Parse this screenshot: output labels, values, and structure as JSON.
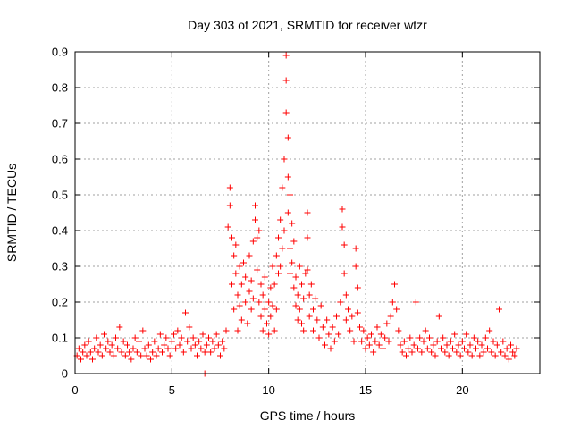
{
  "chart_data": {
    "type": "scatter",
    "title": "Day 303 of 2021, SRMTID for receiver wtzr",
    "xlabel": "GPS time / hours",
    "ylabel": "SRMTID / TECUs",
    "xlim": [
      0,
      24
    ],
    "ylim": [
      0,
      0.9
    ],
    "xticks": [
      0,
      5,
      10,
      15,
      20
    ],
    "xtick_labels": [
      "0",
      "5",
      "10",
      "15",
      "20"
    ],
    "yticks": [
      0,
      0.1,
      0.2,
      0.3,
      0.4,
      0.5,
      0.6,
      0.7,
      0.8,
      0.9
    ],
    "ytick_labels": [
      "0",
      "0.1",
      "0.2",
      "0.3",
      "0.4",
      "0.5",
      "0.6",
      "0.7",
      "0.8",
      "0.9"
    ],
    "grid": true,
    "marker": "+",
    "color": "#ff0000",
    "series": [
      {
        "name": "SRMTID",
        "points": [
          [
            0.1,
            0.05
          ],
          [
            0.2,
            0.07
          ],
          [
            0.3,
            0.04
          ],
          [
            0.4,
            0.06
          ],
          [
            0.5,
            0.08
          ],
          [
            0.6,
            0.05
          ],
          [
            0.7,
            0.09
          ],
          [
            0.8,
            0.06
          ],
          [
            0.9,
            0.04
          ],
          [
            1.0,
            0.07
          ],
          [
            1.1,
            0.1
          ],
          [
            1.2,
            0.06
          ],
          [
            1.3,
            0.08
          ],
          [
            1.4,
            0.05
          ],
          [
            1.5,
            0.11
          ],
          [
            1.6,
            0.07
          ],
          [
            1.7,
            0.09
          ],
          [
            1.8,
            0.06
          ],
          [
            1.9,
            0.08
          ],
          [
            2.0,
            0.05
          ],
          [
            2.1,
            0.1
          ],
          [
            2.2,
            0.07
          ],
          [
            2.3,
            0.13
          ],
          [
            2.4,
            0.06
          ],
          [
            2.5,
            0.09
          ],
          [
            2.6,
            0.05
          ],
          [
            2.7,
            0.08
          ],
          [
            2.8,
            0.06
          ],
          [
            2.9,
            0.04
          ],
          [
            3.0,
            0.07
          ],
          [
            3.1,
            0.1
          ],
          [
            3.2,
            0.06
          ],
          [
            3.3,
            0.09
          ],
          [
            3.4,
            0.05
          ],
          [
            3.5,
            0.12
          ],
          [
            3.6,
            0.07
          ],
          [
            3.7,
            0.05
          ],
          [
            3.8,
            0.08
          ],
          [
            3.9,
            0.04
          ],
          [
            4.0,
            0.06
          ],
          [
            4.1,
            0.09
          ],
          [
            4.2,
            0.05
          ],
          [
            4.3,
            0.07
          ],
          [
            4.4,
            0.11
          ],
          [
            4.5,
            0.06
          ],
          [
            4.6,
            0.08
          ],
          [
            4.7,
            0.1
          ],
          [
            4.8,
            0.07
          ],
          [
            4.9,
            0.05
          ],
          [
            5.0,
            0.09
          ],
          [
            5.1,
            0.11
          ],
          [
            5.2,
            0.07
          ],
          [
            5.3,
            0.12
          ],
          [
            5.4,
            0.08
          ],
          [
            5.5,
            0.1
          ],
          [
            5.6,
            0.06
          ],
          [
            5.7,
            0.17
          ],
          [
            5.8,
            0.09
          ],
          [
            5.9,
            0.13
          ],
          [
            6.0,
            0.07
          ],
          [
            6.1,
            0.1
          ],
          [
            6.2,
            0.08
          ],
          [
            6.3,
            0.05
          ],
          [
            6.4,
            0.09
          ],
          [
            6.5,
            0.07
          ],
          [
            6.6,
            0.11
          ],
          [
            6.7,
            0.06
          ],
          [
            6.8,
            0.08
          ],
          [
            6.9,
            0.1
          ],
          [
            7.0,
            0.06
          ],
          [
            7.1,
            0.09
          ],
          [
            7.2,
            0.07
          ],
          [
            7.3,
            0.11
          ],
          [
            7.4,
            0.08
          ],
          [
            7.5,
            0.05
          ],
          [
            7.6,
            0.09
          ],
          [
            7.7,
            0.07
          ],
          [
            7.8,
            0.12
          ],
          [
            7.9,
            0.41
          ],
          [
            8.0,
            0.47
          ],
          [
            8.0,
            0.52
          ],
          [
            8.1,
            0.38
          ],
          [
            8.1,
            0.25
          ],
          [
            8.2,
            0.33
          ],
          [
            8.2,
            0.18
          ],
          [
            8.3,
            0.28
          ],
          [
            8.3,
            0.36
          ],
          [
            8.4,
            0.22
          ],
          [
            8.4,
            0.12
          ],
          [
            8.5,
            0.3
          ],
          [
            8.5,
            0.19
          ],
          [
            8.6,
            0.25
          ],
          [
            8.6,
            0.15
          ],
          [
            8.7,
            0.31
          ],
          [
            8.8,
            0.2
          ],
          [
            8.8,
            0.27
          ],
          [
            8.9,
            0.14
          ],
          [
            9.0,
            0.23
          ],
          [
            9.0,
            0.33
          ],
          [
            9.1,
            0.18
          ],
          [
            9.1,
            0.26
          ],
          [
            9.2,
            0.37
          ],
          [
            9.2,
            0.21
          ],
          [
            9.3,
            0.47
          ],
          [
            9.3,
            0.43
          ],
          [
            9.4,
            0.38
          ],
          [
            9.4,
            0.29
          ],
          [
            9.5,
            0.4
          ],
          [
            9.5,
            0.2
          ],
          [
            9.6,
            0.25
          ],
          [
            9.6,
            0.16
          ],
          [
            9.7,
            0.22
          ],
          [
            9.7,
            0.12
          ],
          [
            9.8,
            0.18
          ],
          [
            9.8,
            0.27
          ],
          [
            9.9,
            0.14
          ],
          [
            10.0,
            0.2
          ],
          [
            10.0,
            0.11
          ],
          [
            10.1,
            0.24
          ],
          [
            10.1,
            0.16
          ],
          [
            10.2,
            0.3
          ],
          [
            10.2,
            0.19
          ],
          [
            10.3,
            0.12
          ],
          [
            10.3,
            0.25
          ],
          [
            10.4,
            0.33
          ],
          [
            10.4,
            0.18
          ],
          [
            10.5,
            0.28
          ],
          [
            10.5,
            0.38
          ],
          [
            10.6,
            0.43
          ],
          [
            10.6,
            0.3
          ],
          [
            10.7,
            0.52
          ],
          [
            10.7,
            0.35
          ],
          [
            10.8,
            0.6
          ],
          [
            10.8,
            0.4
          ],
          [
            10.9,
            0.89
          ],
          [
            10.9,
            0.73
          ],
          [
            10.9,
            0.82
          ],
          [
            11.0,
            0.66
          ],
          [
            11.0,
            0.55
          ],
          [
            11.0,
            0.45
          ],
          [
            11.1,
            0.5
          ],
          [
            11.1,
            0.35
          ],
          [
            11.1,
            0.28
          ],
          [
            11.2,
            0.42
          ],
          [
            11.2,
            0.31
          ],
          [
            11.3,
            0.24
          ],
          [
            11.3,
            0.37
          ],
          [
            11.4,
            0.19
          ],
          [
            11.4,
            0.27
          ],
          [
            11.5,
            0.15
          ],
          [
            11.5,
            0.22
          ],
          [
            11.6,
            0.3
          ],
          [
            11.6,
            0.18
          ],
          [
            11.7,
            0.25
          ],
          [
            11.7,
            0.14
          ],
          [
            11.8,
            0.21
          ],
          [
            11.8,
            0.12
          ],
          [
            11.9,
            0.28
          ],
          [
            12.0,
            0.45
          ],
          [
            12.0,
            0.38
          ],
          [
            12.0,
            0.29
          ],
          [
            12.1,
            0.22
          ],
          [
            12.1,
            0.16
          ],
          [
            12.2,
            0.25
          ],
          [
            12.3,
            0.18
          ],
          [
            12.3,
            0.12
          ],
          [
            12.4,
            0.21
          ],
          [
            12.5,
            0.15
          ],
          [
            12.6,
            0.1
          ],
          [
            12.7,
            0.19
          ],
          [
            12.8,
            0.13
          ],
          [
            12.9,
            0.08
          ],
          [
            13.0,
            0.15
          ],
          [
            13.1,
            0.11
          ],
          [
            13.2,
            0.07
          ],
          [
            13.3,
            0.13
          ],
          [
            13.4,
            0.09
          ],
          [
            13.5,
            0.16
          ],
          [
            13.6,
            0.11
          ],
          [
            13.7,
            0.2
          ],
          [
            13.8,
            0.46
          ],
          [
            13.8,
            0.41
          ],
          [
            13.9,
            0.36
          ],
          [
            13.9,
            0.28
          ],
          [
            14.0,
            0.22
          ],
          [
            14.0,
            0.15
          ],
          [
            14.1,
            0.18
          ],
          [
            14.2,
            0.12
          ],
          [
            14.3,
            0.16
          ],
          [
            14.4,
            0.09
          ],
          [
            14.5,
            0.35
          ],
          [
            14.5,
            0.3
          ],
          [
            14.6,
            0.24
          ],
          [
            14.6,
            0.17
          ],
          [
            14.7,
            0.13
          ],
          [
            14.8,
            0.09
          ],
          [
            14.9,
            0.12
          ],
          [
            15.0,
            0.07
          ],
          [
            15.1,
            0.1
          ],
          [
            15.2,
            0.08
          ],
          [
            15.3,
            0.11
          ],
          [
            15.4,
            0.06
          ],
          [
            15.5,
            0.09
          ],
          [
            15.6,
            0.13
          ],
          [
            15.7,
            0.08
          ],
          [
            15.8,
            0.11
          ],
          [
            15.9,
            0.07
          ],
          [
            16.0,
            0.1
          ],
          [
            16.1,
            0.14
          ],
          [
            16.2,
            0.09
          ],
          [
            16.3,
            0.16
          ],
          [
            16.4,
            0.2
          ],
          [
            16.5,
            0.25
          ],
          [
            16.6,
            0.18
          ],
          [
            16.7,
            0.12
          ],
          [
            16.8,
            0.08
          ],
          [
            16.9,
            0.06
          ],
          [
            17.0,
            0.09
          ],
          [
            17.1,
            0.05
          ],
          [
            17.2,
            0.07
          ],
          [
            17.3,
            0.1
          ],
          [
            17.4,
            0.06
          ],
          [
            17.5,
            0.08
          ],
          [
            17.6,
            0.2
          ],
          [
            17.7,
            0.07
          ],
          [
            17.8,
            0.1
          ],
          [
            17.9,
            0.06
          ],
          [
            18.0,
            0.09
          ],
          [
            18.1,
            0.12
          ],
          [
            18.2,
            0.07
          ],
          [
            18.3,
            0.1
          ],
          [
            18.4,
            0.06
          ],
          [
            18.5,
            0.08
          ],
          [
            18.6,
            0.05
          ],
          [
            18.7,
            0.09
          ],
          [
            18.8,
            0.16
          ],
          [
            18.9,
            0.07
          ],
          [
            19.0,
            0.1
          ],
          [
            19.1,
            0.06
          ],
          [
            19.2,
            0.08
          ],
          [
            19.3,
            0.05
          ],
          [
            19.4,
            0.09
          ],
          [
            19.5,
            0.07
          ],
          [
            19.6,
            0.11
          ],
          [
            19.7,
            0.06
          ],
          [
            19.8,
            0.08
          ],
          [
            19.9,
            0.05
          ],
          [
            20.0,
            0.09
          ],
          [
            20.1,
            0.07
          ],
          [
            20.2,
            0.11
          ],
          [
            20.3,
            0.06
          ],
          [
            20.4,
            0.08
          ],
          [
            20.5,
            0.05
          ],
          [
            20.6,
            0.1
          ],
          [
            20.7,
            0.07
          ],
          [
            20.8,
            0.09
          ],
          [
            20.9,
            0.05
          ],
          [
            21.0,
            0.08
          ],
          [
            21.1,
            0.06
          ],
          [
            21.2,
            0.1
          ],
          [
            21.3,
            0.07
          ],
          [
            21.4,
            0.12
          ],
          [
            21.5,
            0.06
          ],
          [
            21.6,
            0.09
          ],
          [
            21.7,
            0.05
          ],
          [
            21.8,
            0.08
          ],
          [
            21.9,
            0.18
          ],
          [
            22.0,
            0.06
          ],
          [
            22.1,
            0.09
          ],
          [
            22.2,
            0.05
          ],
          [
            22.3,
            0.07
          ],
          [
            22.4,
            0.04
          ],
          [
            22.5,
            0.08
          ],
          [
            22.6,
            0.06
          ],
          [
            22.7,
            0.05
          ],
          [
            22.8,
            0.07
          ],
          [
            6.7,
            0.0
          ]
        ]
      }
    ]
  }
}
